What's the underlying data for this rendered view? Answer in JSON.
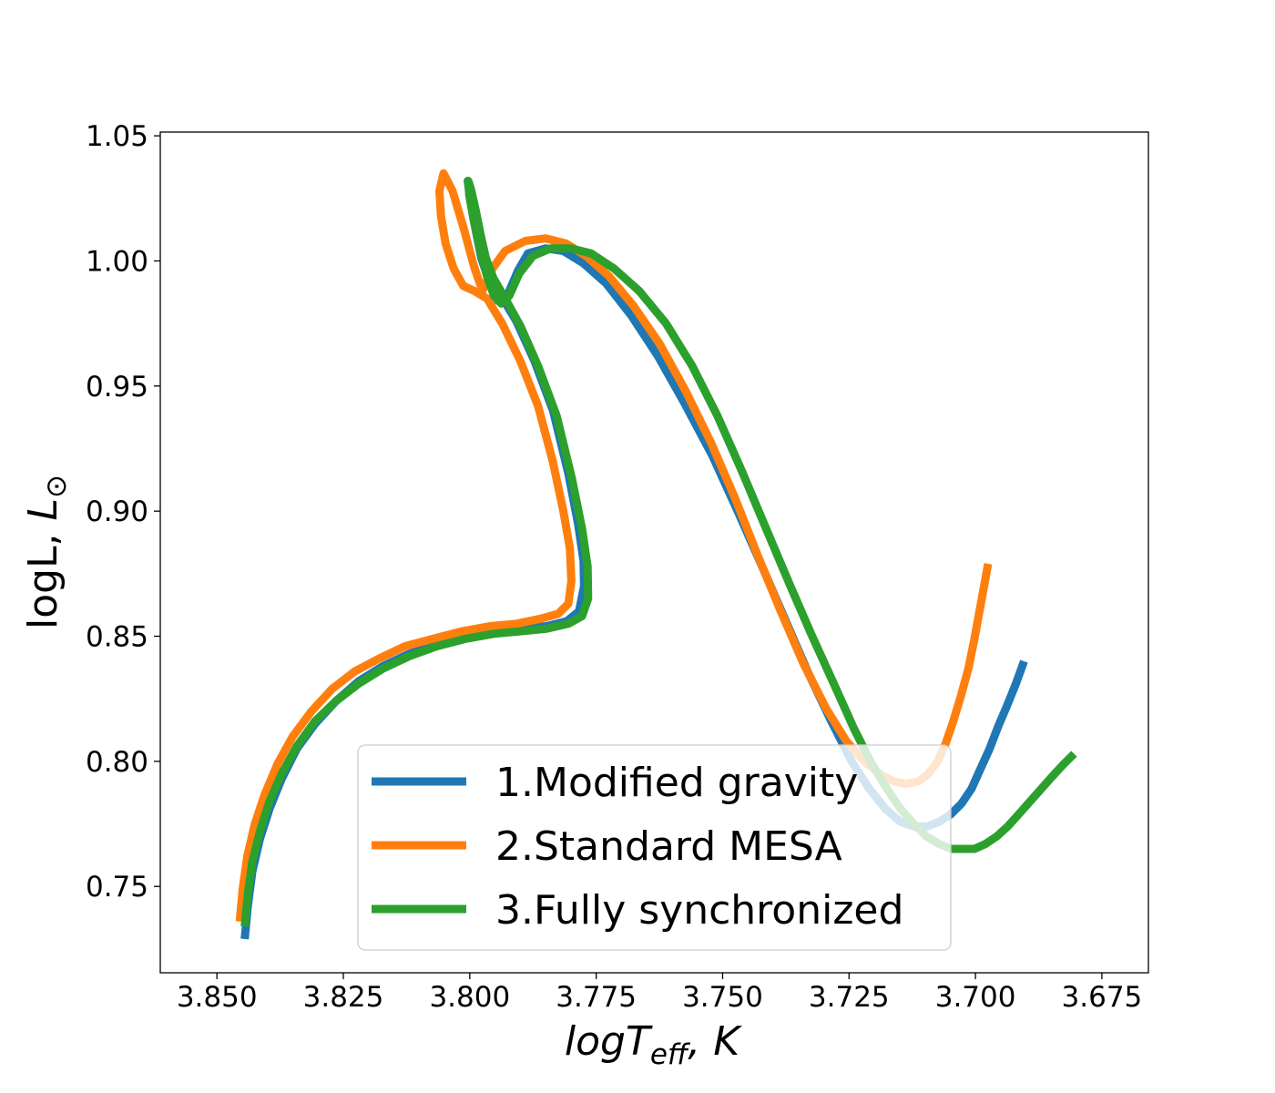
{
  "chart_data": {
    "type": "line",
    "title": "",
    "xlabel": "logT_eff, K",
    "ylabel": "logL, L_⊙",
    "xlim": [
      3.8612,
      3.6658
    ],
    "ylim": [
      0.7155,
      1.0515
    ],
    "x_inverted": true,
    "grid": false,
    "legend_position": "lower-right",
    "xticks": [
      3.85,
      3.825,
      3.8,
      3.775,
      3.75,
      3.725,
      3.7,
      3.675
    ],
    "xtick_labels": [
      "3.850",
      "3.825",
      "3.800",
      "3.775",
      "3.750",
      "3.725",
      "3.700",
      "3.675"
    ],
    "yticks": [
      0.75,
      0.8,
      0.85,
      0.9,
      0.95,
      1.0,
      1.05
    ],
    "ytick_labels": [
      "0.75",
      "0.80",
      "0.85",
      "0.90",
      "0.95",
      "1.00",
      "1.05"
    ],
    "series": [
      {
        "name": "1.Modified gravity",
        "color": "#1f77b4",
        "x": [
          3.8445,
          3.8439,
          3.843,
          3.8415,
          3.8396,
          3.8372,
          3.8342,
          3.8306,
          3.8265,
          3.822,
          3.8172,
          3.812,
          3.8065,
          3.8008,
          3.7952,
          3.7898,
          3.7848,
          3.7808,
          3.7784,
          3.7774,
          3.7775,
          3.7786,
          3.7805,
          3.7835,
          3.7872,
          3.7908,
          3.7938,
          3.7962,
          3.7977,
          3.7988,
          3.7997,
          3.8004,
          3.8002,
          3.7991,
          3.7978,
          3.7962,
          3.7944,
          3.7926,
          3.7905,
          3.7885,
          3.785,
          3.7815,
          3.7775,
          3.773,
          3.768,
          3.7628,
          3.7575,
          3.752,
          3.7468,
          3.742,
          3.7375,
          3.733,
          3.7285,
          3.7245,
          3.721,
          3.7178,
          3.715,
          3.7122,
          3.7095,
          3.707,
          3.7048,
          3.7028,
          3.7008,
          3.699,
          3.6972,
          3.6955,
          3.6938,
          3.692,
          3.6904
        ],
        "y": [
          0.729,
          0.742,
          0.756,
          0.769,
          0.781,
          0.793,
          0.805,
          0.815,
          0.824,
          0.832,
          0.838,
          0.843,
          0.847,
          0.85,
          0.852,
          0.853,
          0.854,
          0.856,
          0.86,
          0.87,
          0.88,
          0.895,
          0.915,
          0.94,
          0.96,
          0.976,
          0.986,
          0.992,
          1.001,
          1.012,
          1.022,
          1.032,
          1.029,
          1.019,
          1.007,
          0.993,
          0.984,
          0.986,
          0.996,
          1.003,
          1.005,
          1.004,
          0.999,
          0.991,
          0.978,
          0.962,
          0.943,
          0.922,
          0.899,
          0.877,
          0.856,
          0.835,
          0.816,
          0.8,
          0.789,
          0.781,
          0.776,
          0.774,
          0.774,
          0.776,
          0.779,
          0.783,
          0.789,
          0.797,
          0.805,
          0.814,
          0.822,
          0.831,
          0.84
        ]
      },
      {
        "name": "2.Standard MESA",
        "color": "#ff7f0e",
        "x": [
          3.8455,
          3.8449,
          3.844,
          3.8425,
          3.8405,
          3.838,
          3.835,
          3.8313,
          3.8272,
          3.8227,
          3.818,
          3.8128,
          3.8073,
          3.8015,
          3.796,
          3.7908,
          3.786,
          3.7825,
          3.7805,
          3.7799,
          3.7802,
          3.7815,
          3.7836,
          3.7865,
          3.79,
          3.7936,
          3.7966,
          3.7991,
          3.8013,
          3.8032,
          3.8048,
          3.8057,
          3.806,
          3.8052,
          3.8034,
          3.8012,
          3.7992,
          3.7975,
          3.7955,
          3.793,
          3.789,
          3.785,
          3.781,
          3.777,
          3.7725,
          3.7676,
          3.7625,
          3.7573,
          3.7522,
          3.7475,
          3.743,
          3.7385,
          3.734,
          3.7295,
          3.7255,
          3.722,
          3.719,
          3.7162,
          3.7136,
          3.7113,
          3.7093,
          3.7075,
          3.7059,
          3.7044,
          3.7029,
          3.7014,
          3.7002,
          3.6992,
          3.6983,
          3.6975
        ],
        "y": [
          0.736,
          0.749,
          0.762,
          0.775,
          0.787,
          0.799,
          0.81,
          0.82,
          0.829,
          0.836,
          0.841,
          0.846,
          0.849,
          0.852,
          0.854,
          0.855,
          0.857,
          0.859,
          0.863,
          0.872,
          0.885,
          0.9,
          0.92,
          0.942,
          0.96,
          0.975,
          0.985,
          0.988,
          0.99,
          0.997,
          1.007,
          1.018,
          1.028,
          1.035,
          1.028,
          1.013,
          0.998,
          0.988,
          0.997,
          1.004,
          1.008,
          1.009,
          1.007,
          1.002,
          0.994,
          0.982,
          0.967,
          0.948,
          0.927,
          0.905,
          0.882,
          0.86,
          0.839,
          0.821,
          0.808,
          0.8,
          0.795,
          0.792,
          0.791,
          0.792,
          0.795,
          0.8,
          0.807,
          0.816,
          0.826,
          0.837,
          0.849,
          0.86,
          0.87,
          0.879
        ]
      },
      {
        "name": "3.Fully synchronized",
        "color": "#2ca02c",
        "x": [
          3.8445,
          3.8439,
          3.843,
          3.8415,
          3.8396,
          3.8372,
          3.8342,
          3.8306,
          3.8265,
          3.822,
          3.8172,
          3.812,
          3.8065,
          3.8008,
          3.7952,
          3.7898,
          3.7848,
          3.7805,
          3.7778,
          3.7766,
          3.7767,
          3.7778,
          3.7798,
          3.7828,
          3.7865,
          3.79,
          3.793,
          3.7953,
          3.7968,
          3.7978,
          3.7988,
          3.7998,
          3.8003,
          3.8001,
          3.7992,
          3.798,
          3.7966,
          3.7952,
          3.7938,
          3.7922,
          3.7902,
          3.7875,
          3.784,
          3.78,
          3.776,
          3.7715,
          3.7665,
          3.7612,
          3.756,
          3.751,
          3.7462,
          3.7416,
          3.737,
          3.7325,
          3.728,
          3.724,
          3.7205,
          3.7175,
          3.7148,
          3.7122,
          3.7097,
          3.7072,
          3.7048,
          3.7025,
          3.7002,
          3.698,
          3.6958,
          3.6936,
          3.6914,
          3.6892,
          3.687,
          3.6848,
          3.6825,
          3.6805
        ],
        "y": [
          0.734,
          0.747,
          0.76,
          0.772,
          0.784,
          0.795,
          0.806,
          0.816,
          0.824,
          0.831,
          0.837,
          0.842,
          0.846,
          0.849,
          0.851,
          0.852,
          0.853,
          0.855,
          0.858,
          0.865,
          0.878,
          0.893,
          0.913,
          0.938,
          0.958,
          0.974,
          0.985,
          0.993,
          1.001,
          1.01,
          1.02,
          1.029,
          1.032,
          1.026,
          1.016,
          1.005,
          0.994,
          0.986,
          0.983,
          0.986,
          0.995,
          1.002,
          1.005,
          1.005,
          1.003,
          0.997,
          0.988,
          0.975,
          0.958,
          0.938,
          0.916,
          0.894,
          0.872,
          0.851,
          0.831,
          0.813,
          0.799,
          0.789,
          0.781,
          0.775,
          0.77,
          0.767,
          0.765,
          0.765,
          0.765,
          0.767,
          0.77,
          0.774,
          0.779,
          0.784,
          0.789,
          0.794,
          0.799,
          0.803
        ]
      }
    ]
  }
}
